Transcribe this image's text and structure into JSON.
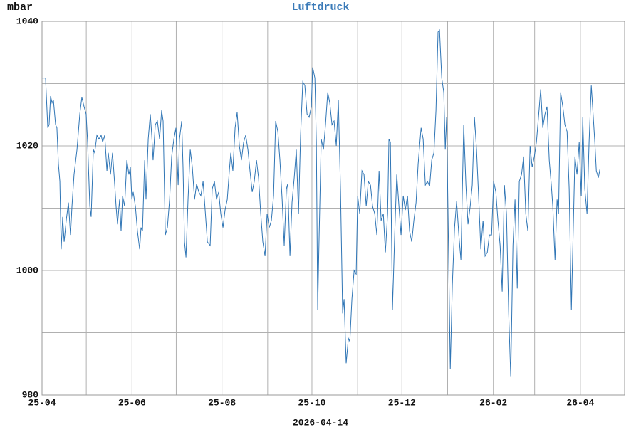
{
  "chart_data": {
    "type": "line",
    "title": "Luftdruck",
    "y_unit": "mbar",
    "date": "2026-04-14",
    "color": "#2f75b5",
    "title_color": "#3a7ab8",
    "xlim": [
      0,
      395
    ],
    "xticks": [
      {
        "value": 0,
        "label": "25-04"
      },
      {
        "value": 61,
        "label": "25-06"
      },
      {
        "value": 122,
        "label": "25-08"
      },
      {
        "value": 183,
        "label": "25-10"
      },
      {
        "value": 244,
        "label": "25-12"
      },
      {
        "value": 306,
        "label": "26-02"
      },
      {
        "value": 365,
        "label": "26-04"
      }
    ],
    "xgrid_minor": [
      30,
      91,
      153,
      214,
      275,
      334
    ],
    "ylim": [
      980,
      1040
    ],
    "yticks": [
      980,
      1000,
      1020,
      1040
    ],
    "ygrid_minor": [
      990,
      1010,
      1030
    ],
    "grid": true,
    "x": [
      0,
      2.4,
      3.9,
      4.8,
      5.8,
      6.8,
      7.7,
      9.2,
      10.1,
      11.1,
      12.1,
      13,
      14,
      15,
      16.4,
      17.9,
      19.3,
      20.3,
      21.7,
      23.7,
      25.6,
      27,
      28.5,
      29.9,
      30.9,
      32.4,
      33.3,
      34.8,
      35.7,
      37.2,
      38.6,
      40.1,
      41.1,
      42.5,
      44,
      44.9,
      46.4,
      47.8,
      49.3,
      50.2,
      51.2,
      52.6,
      53.6,
      54.6,
      56,
      57.5,
      58.9,
      59.9,
      60.9,
      61.8,
      63.3,
      64.7,
      66.2,
      67.1,
      68.1,
      69.6,
      70.5,
      72,
      73.4,
      74.4,
      75.3,
      76.8,
      78.2,
      79.7,
      81.1,
      82.1,
      83.6,
      85,
      86.5,
      87.9,
      89.4,
      90.8,
      92.3,
      93.2,
      94.7,
      95.6,
      96.6,
      97.6,
      99,
      100.5,
      101.9,
      103.4,
      104.8,
      106.3,
      107.7,
      109.2,
      110.6,
      112.1,
      114,
      115.4,
      116.9,
      118.3,
      119.8,
      121.2,
      122.7,
      124.1,
      125.6,
      127,
      128,
      129.4,
      130.9,
      132.3,
      133.8,
      135.2,
      136.7,
      138.1,
      139.6,
      141,
      142.5,
      143.9,
      145.4,
      146.8,
      148.3,
      149.7,
      151.2,
      152.6,
      154.1,
      155.5,
      157,
      158.4,
      159.9,
      161.3,
      162.8,
      164.2,
      165.7,
      166.6,
      168.1,
      169.5,
      171,
      172.4,
      173.9,
      175.3,
      176.8,
      178.2,
      179.7,
      181.1,
      182.6,
      183.5,
      185,
      186,
      186.9,
      187.9,
      189.3,
      190.8,
      192.2,
      193.7,
      195.1,
      196.6,
      198,
      199.5,
      200.9,
      202.4,
      203.8,
      204.8,
      206.2,
      207.7,
      208.7,
      210.1,
      211.6,
      213,
      214,
      215.4,
      216.9,
      218.3,
      219.8,
      221.2,
      222.7,
      224.1,
      225.6,
      227,
      228.5,
      229.9,
      231.4,
      232.8,
      234.3,
      235.2,
      236.2,
      237.6,
      239.1,
      240.5,
      242,
      243.4,
      244.9,
      246.3,
      247.8,
      249.2,
      250.7,
      252.1,
      253.6,
      255,
      257,
      258.4,
      259.9,
      261.3,
      262.8,
      264.2,
      265.7,
      267.1,
      268.5,
      269.5,
      271,
      272.4,
      273.4,
      274.3,
      275.3,
      276.8,
      278.2,
      279.7,
      281.1,
      282.6,
      284,
      285.9,
      287.4,
      288.8,
      290.3,
      291.7,
      293.2,
      294.6,
      296.1,
      297.5,
      299,
      300.4,
      301.9,
      303.3,
      304.8,
      306.2,
      307.7,
      309.1,
      310.6,
      312,
      313.5,
      314.9,
      316.4,
      317.8,
      319.3,
      320.7,
      322.2,
      323.6,
      325.1,
      326.5,
      328,
      329.4,
      330.9,
      332.3,
      333.8,
      335.2,
      336.6,
      338.1,
      339.5,
      341,
      342.4,
      343.9,
      345.3,
      346.3,
      347.8,
      349.2,
      350.2,
      351.6,
      353.1,
      354.5,
      356,
      357.4,
      358.9,
      360.3,
      361.3,
      362.7,
      364.2,
      365.6,
      366.6,
      368,
      369.5,
      370.9,
      372.4,
      373.3,
      374.8,
      375.8,
      377.2,
      378.2
    ],
    "values": [
      1030.9,
      1030.9,
      1022.9,
      1023.4,
      1028,
      1026.9,
      1027.4,
      1023.4,
      1022.9,
      1017.1,
      1014.3,
      1003.4,
      1008.6,
      1004.6,
      1008,
      1010.9,
      1005.7,
      1010.3,
      1015.4,
      1019.4,
      1025.1,
      1027.8,
      1026.3,
      1025.1,
      1020.6,
      1010.3,
      1008.6,
      1019.4,
      1018.9,
      1021.7,
      1021.1,
      1021.7,
      1020.6,
      1021.7,
      1016,
      1018.9,
      1015.4,
      1018.9,
      1013.7,
      1010.3,
      1007.4,
      1011.4,
      1006.3,
      1012,
      1010.3,
      1017.7,
      1015.4,
      1016.6,
      1011.4,
      1012.6,
      1010.3,
      1006.3,
      1003.4,
      1006.9,
      1006.3,
      1017.7,
      1011.4,
      1021.1,
      1025.1,
      1021.7,
      1017.7,
      1023.4,
      1024,
      1021.1,
      1025.7,
      1024,
      1005.7,
      1006.9,
      1011.4,
      1018.3,
      1021.1,
      1022.9,
      1013.7,
      1021.1,
      1024,
      1016.6,
      1004.6,
      1002.1,
      1011.4,
      1019.4,
      1016.6,
      1011.4,
      1013.9,
      1012.6,
      1012,
      1014.3,
      1009.7,
      1004.6,
      1004,
      1013.1,
      1014.3,
      1011.4,
      1012.6,
      1009.1,
      1006.9,
      1009.7,
      1011.4,
      1016,
      1018.9,
      1016,
      1022.9,
      1025.4,
      1020,
      1017.7,
      1020.6,
      1021.7,
      1019.4,
      1016,
      1012.6,
      1014.3,
      1017.7,
      1014.9,
      1009.1,
      1004.6,
      1002.3,
      1009.1,
      1006.9,
      1008,
      1012,
      1024,
      1022.3,
      1017.7,
      1011.4,
      1004,
      1013.1,
      1013.9,
      1002.3,
      1010.9,
      1014.9,
      1019.4,
      1009.1,
      1021.7,
      1030.3,
      1029.7,
      1025.1,
      1024.6,
      1026.3,
      1032.6,
      1030.9,
      1020.6,
      993.7,
      1005.7,
      1021.1,
      1019.4,
      1023.4,
      1028.6,
      1026.9,
      1023.4,
      1024,
      1020,
      1027.4,
      1012.6,
      993.1,
      995.4,
      985.1,
      989.1,
      988.6,
      995.4,
      1000,
      999.4,
      1012,
      1009.1,
      1016,
      1015.4,
      1010.3,
      1014.3,
      1013.7,
      1010.3,
      1009.1,
      1005.7,
      1016,
      1008,
      1009.1,
      1002.9,
      1009.1,
      1021.1,
      1020.6,
      993.7,
      1005.7,
      1015.4,
      1010.3,
      1005.7,
      1012,
      1009.7,
      1012,
      1006.3,
      1004.6,
      1008,
      1010.9,
      1017.1,
      1022.9,
      1021.1,
      1013.7,
      1014.3,
      1013.5,
      1017.7,
      1018.9,
      1025.7,
      1038.3,
      1038.6,
      1030.9,
      1028.6,
      1019.4,
      1024.6,
      1008.6,
      984.2,
      997.7,
      1006.9,
      1011.1,
      1005.7,
      1001.7,
      1023.4,
      1013.7,
      1007.4,
      1010.3,
      1013.7,
      1024.6,
      1019.4,
      1011.4,
      1003.4,
      1008,
      1002.3,
      1002.9,
      1005.7,
      1005.7,
      1014.3,
      1012.6,
      1008,
      1004,
      996.6,
      1013.7,
      1009.1,
      993.1,
      982.9,
      1004,
      1011.4,
      997.1,
      1014.3,
      1015.4,
      1018.3,
      1009.1,
      1006.3,
      1020,
      1016.6,
      1018.3,
      1020.6,
      1024.6,
      1029.1,
      1022.9,
      1025.1,
      1026.3,
      1017.7,
      1013.7,
      1010.3,
      1001.7,
      1011.4,
      1009.1,
      1028.6,
      1026.3,
      1023.4,
      1022.3,
      1013.1,
      993.7,
      1008,
      1018.3,
      1015.4,
      1020.6,
      1012,
      1024.6,
      1013.1,
      1009.1,
      1020.6,
      1029.7,
      1026.3,
      1020.6,
      1016,
      1014.9,
      1016.2
    ]
  }
}
